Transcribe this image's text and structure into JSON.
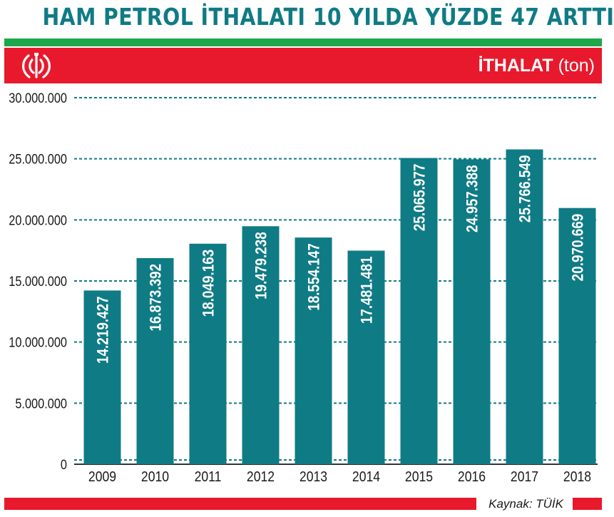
{
  "header": {
    "title": "HAM PETROL İTHALATI 10 YILDA YÜZDE 47 ARTTI",
    "unit_bold": "İTHALAT",
    "unit_normal": " (ton)"
  },
  "footer": {
    "source": "Kaynak: TÜİK"
  },
  "colors": {
    "bar": "#0f7b85",
    "title": "#0f7b85",
    "red": "#e8192c",
    "green": "#1ca84a",
    "grid": "#0f7b85"
  },
  "chart_data": {
    "type": "bar",
    "categories": [
      "2009",
      "2010",
      "2011",
      "2012",
      "2013",
      "2014",
      "2015",
      "2016",
      "2017",
      "2018"
    ],
    "values": [
      14219427,
      16873392,
      18049163,
      19479238,
      18554147,
      17481481,
      25065977,
      24957388,
      25766549,
      20970669
    ],
    "value_labels": [
      "14.219.427",
      "16.873.392",
      "18.049.163",
      "19.479.238",
      "18.554.147",
      "17.481.481",
      "25.065.977",
      "24.957.388",
      "25.766.549",
      "20.970.669"
    ],
    "y_ticks": [
      0,
      5000000,
      10000000,
      15000000,
      20000000,
      25000000,
      30000000
    ],
    "y_tick_labels": [
      "0",
      "5.000.000",
      "10.000.000",
      "15.000.000",
      "20.000.000",
      "25.000.000",
      "30.000.000"
    ],
    "ylim": [
      0,
      30000000
    ],
    "grid": true,
    "legend": "none"
  }
}
